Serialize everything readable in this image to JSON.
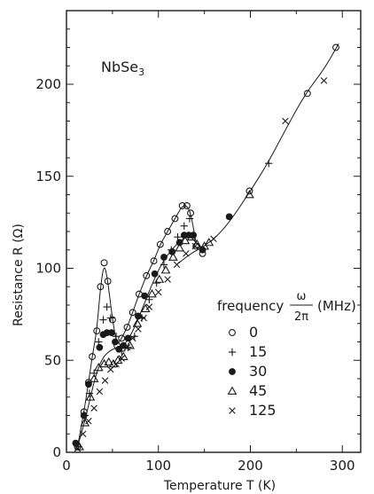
{
  "chart_data": {
    "type": "scatter",
    "title": "NbSe3",
    "title_sub": "3",
    "xlabel": "Temperature T (K)",
    "ylabel": "Resistance R (Ω)",
    "xlim": [
      0,
      320
    ],
    "ylim": [
      0,
      240
    ],
    "x_ticks": [
      0,
      100,
      200,
      300
    ],
    "y_ticks": [
      0,
      50,
      100,
      150,
      200
    ],
    "grid": false,
    "legend": {
      "title_prefix": "frequency",
      "fraction_numerator": "ω",
      "fraction_denominator": "2π",
      "title_unit": "(MHz)",
      "placement": "right"
    },
    "series": [
      {
        "name": "0",
        "marker": "open-circle",
        "x": [
          12,
          19,
          24,
          28,
          33,
          37,
          41,
          45,
          50,
          55,
          60,
          66,
          72,
          79,
          87,
          95,
          102,
          110,
          118,
          126,
          131,
          135,
          141,
          148,
          199,
          262,
          293
        ],
        "y": [
          3,
          22,
          38,
          52,
          66,
          90,
          103,
          93,
          72,
          58,
          62,
          68,
          76,
          86,
          96,
          104,
          113,
          120,
          127,
          134,
          134,
          130,
          112,
          108,
          142,
          195,
          220
        ]
      },
      {
        "name": "15",
        "marker": "plus",
        "x": [
          13,
          20,
          25,
          30,
          35,
          40,
          44,
          48,
          54,
          60,
          67,
          74,
          82,
          90,
          98,
          106,
          114,
          121,
          128,
          134,
          220
        ],
        "y": [
          3,
          20,
          32,
          43,
          60,
          72,
          79,
          73,
          63,
          55,
          57,
          63,
          73,
          83,
          92,
          102,
          110,
          117,
          123,
          127,
          157
        ]
      },
      {
        "name": "30",
        "marker": "filled-circle",
        "x": [
          10,
          19,
          24,
          36,
          40,
          44,
          49,
          53,
          57,
          62,
          67,
          78,
          85,
          96,
          106,
          115,
          123,
          128,
          133,
          138,
          148,
          177
        ],
        "y": [
          5,
          20,
          37,
          57,
          64,
          65,
          65,
          60,
          56,
          58,
          62,
          74,
          85,
          97,
          106,
          109,
          114,
          118,
          118,
          118,
          110,
          128
        ]
      },
      {
        "name": "45",
        "marker": "open-triangle",
        "x": [
          14,
          20,
          26,
          30,
          35,
          41,
          46,
          51,
          56,
          62,
          69,
          77,
          86,
          93,
          101,
          108,
          116,
          123,
          129,
          136,
          142,
          150,
          155,
          199
        ],
        "y": [
          3,
          16,
          30,
          40,
          46,
          48,
          49,
          48,
          50,
          52,
          58,
          70,
          78,
          86,
          94,
          99,
          106,
          111,
          115,
          117,
          113,
          112,
          114,
          140
        ]
      },
      {
        "name": "125",
        "marker": "cross",
        "x": [
          12,
          18,
          24,
          30,
          36,
          42,
          48,
          54,
          60,
          66,
          72,
          78,
          84,
          90,
          100,
          110,
          120,
          130,
          140,
          160,
          238,
          280
        ],
        "y": [
          2,
          10,
          17,
          24,
          33,
          39,
          45,
          48,
          51,
          57,
          62,
          67,
          73,
          79,
          87,
          94,
          102,
          108,
          112,
          116,
          180,
          202
        ]
      }
    ],
    "curves": [
      {
        "x": [
          12,
          19,
          24,
          28,
          33,
          37,
          41,
          45,
          50,
          55,
          60,
          66,
          72,
          79,
          87,
          95,
          102,
          110,
          118,
          126,
          131,
          135,
          138,
          141
        ],
        "y": [
          3,
          22,
          38,
          52,
          66,
          90,
          103,
          93,
          72,
          58,
          62,
          68,
          76,
          86,
          96,
          104,
          113,
          120,
          127,
          134,
          134,
          130,
          122,
          114
        ]
      },
      {
        "x": [
          12,
          20,
          26,
          32,
          38,
          44,
          50,
          56,
          62,
          68,
          76,
          84,
          92,
          100,
          108,
          116,
          124,
          130,
          136,
          142,
          150
        ],
        "y": [
          3,
          17,
          30,
          42,
          50,
          54,
          56,
          57,
          58,
          62,
          70,
          80,
          90,
          99,
          106,
          111,
          115,
          117,
          117,
          113,
          110
        ]
      },
      {
        "x": [
          120,
          135,
          150,
          165,
          180,
          200,
          220,
          240,
          260,
          280,
          296
        ],
        "y": [
          102,
          108,
          112,
          118,
          127,
          142,
          158,
          177,
          195,
          208,
          222
        ]
      }
    ]
  }
}
